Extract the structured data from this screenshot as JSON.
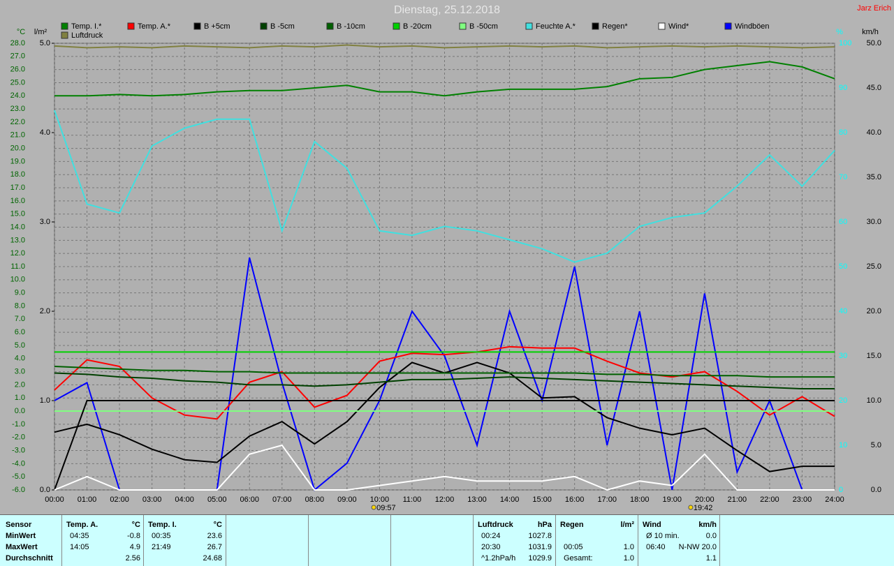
{
  "chart_data": {
    "type": "line",
    "title": "Dienstag, 25.12.2018",
    "author": "Jarz Erich",
    "ylabel": "°C",
    "y2label": "l/m²",
    "y3label": "%",
    "y4label": "km/h",
    "x": [
      0,
      1,
      2,
      3,
      4,
      5,
      6,
      7,
      8,
      9,
      10,
      11,
      12,
      13,
      14,
      15,
      16,
      17,
      18,
      19,
      20,
      21,
      22,
      23,
      24
    ],
    "xlim": [
      0,
      24
    ],
    "xticks": [
      {
        "value": 0,
        "label": "00:00"
      },
      {
        "value": 1,
        "label": "01:00"
      },
      {
        "value": 2,
        "label": "02:00"
      },
      {
        "value": 3,
        "label": "03:00"
      },
      {
        "value": 4,
        "label": "04:00"
      },
      {
        "value": 5,
        "label": "05:00"
      },
      {
        "value": 6,
        "label": "06:00"
      },
      {
        "value": 7,
        "label": "07:00"
      },
      {
        "value": 8,
        "label": "08:00"
      },
      {
        "value": 9,
        "label": "09:00"
      },
      {
        "value": 10,
        "label": "10:00"
      },
      {
        "value": 11,
        "label": "11:00"
      },
      {
        "value": 12,
        "label": "12:00"
      },
      {
        "value": 13,
        "label": "13:00"
      },
      {
        "value": 14,
        "label": "14:00"
      },
      {
        "value": 15,
        "label": "15:00"
      },
      {
        "value": 16,
        "label": "16:00"
      },
      {
        "value": 17,
        "label": "17:00"
      },
      {
        "value": 18,
        "label": "18:00"
      },
      {
        "value": 19,
        "label": "19:00"
      },
      {
        "value": 20,
        "label": "20:00"
      },
      {
        "value": 21,
        "label": "21:00"
      },
      {
        "value": 22,
        "label": "22:00"
      },
      {
        "value": 23,
        "label": "23:00"
      },
      {
        "value": 24,
        "label": "24:00"
      }
    ],
    "ylim": [
      -6,
      28
    ],
    "yticks": [
      {
        "value": 28,
        "label": "28.0"
      },
      {
        "value": 27,
        "label": "27.0"
      },
      {
        "value": 26,
        "label": "26.0"
      },
      {
        "value": 25,
        "label": "25.0"
      },
      {
        "value": 24,
        "label": "24.0"
      },
      {
        "value": 23,
        "label": "23.0"
      },
      {
        "value": 22,
        "label": "22.0"
      },
      {
        "value": 21,
        "label": "21.0"
      },
      {
        "value": 20,
        "label": "20.0"
      },
      {
        "value": 19,
        "label": "19.0"
      },
      {
        "value": 18,
        "label": "18.0"
      },
      {
        "value": 17,
        "label": "17.0"
      },
      {
        "value": 16,
        "label": "16.0"
      },
      {
        "value": 15,
        "label": "15.0"
      },
      {
        "value": 14,
        "label": "14.0"
      },
      {
        "value": 13,
        "label": "13.0"
      },
      {
        "value": 12,
        "label": "12.0"
      },
      {
        "value": 11,
        "label": "11.0"
      },
      {
        "value": 10,
        "label": "10.0"
      },
      {
        "value": 9,
        "label": "9.0"
      },
      {
        "value": 8,
        "label": "8.0"
      },
      {
        "value": 7,
        "label": "7.0"
      },
      {
        "value": 6,
        "label": "6.0"
      },
      {
        "value": 5,
        "label": "5.0"
      },
      {
        "value": 4,
        "label": "4.0"
      },
      {
        "value": 3,
        "label": "3.0"
      },
      {
        "value": 2,
        "label": "2.0"
      },
      {
        "value": 1,
        "label": "1.0"
      },
      {
        "value": 0,
        "label": "0.0"
      },
      {
        "value": -1,
        "label": "-1.0"
      },
      {
        "value": -2,
        "label": "-2.0"
      },
      {
        "value": -3,
        "label": "-3.0"
      },
      {
        "value": -4,
        "label": "-4.0"
      },
      {
        "value": -5,
        "label": "-5.0"
      },
      {
        "value": -6,
        "label": "-6.0"
      }
    ],
    "y2lim": [
      0,
      5
    ],
    "y2ticks": [
      {
        "value": 0,
        "label": "0.0"
      },
      {
        "value": 1,
        "label": "1.0"
      },
      {
        "value": 2,
        "label": "2.0"
      },
      {
        "value": 3,
        "label": "3.0"
      },
      {
        "value": 4,
        "label": "4.0"
      },
      {
        "value": 5,
        "label": "5.0"
      }
    ],
    "y3lim": [
      0,
      100
    ],
    "y3ticks": [
      0,
      10,
      20,
      30,
      40,
      50,
      60,
      70,
      80,
      90,
      100
    ],
    "y4lim": [
      0,
      50
    ],
    "y4ticks": [
      {
        "value": 0,
        "label": "0.0"
      },
      {
        "value": 5,
        "label": "5.0"
      },
      {
        "value": 10,
        "label": "10.0"
      },
      {
        "value": 15,
        "label": "15.0"
      },
      {
        "value": 20,
        "label": "20.0"
      },
      {
        "value": 25,
        "label": "25.0"
      },
      {
        "value": 30,
        "label": "30.0"
      },
      {
        "value": 35,
        "label": "35.0"
      },
      {
        "value": 40,
        "label": "40.0"
      },
      {
        "value": 45,
        "label": "45.0"
      },
      {
        "value": 50,
        "label": "50.0"
      }
    ],
    "grid": true,
    "series": [
      {
        "name": "Windböen",
        "color": "#0000ff",
        "axis": "y4",
        "values": [
          10,
          12,
          0,
          0,
          0,
          0,
          26,
          12,
          0,
          3,
          10,
          20,
          15,
          5,
          20,
          10,
          25,
          5,
          20,
          0,
          22,
          2,
          10,
          0,
          0
        ]
      },
      {
        "name": "Temp. I.*",
        "color": "#008000",
        "values": [
          24.0,
          24.0,
          24.1,
          24.0,
          24.1,
          24.3,
          24.4,
          24.4,
          24.6,
          24.8,
          24.3,
          24.3,
          24.0,
          24.3,
          24.5,
          24.5,
          24.5,
          24.7,
          25.3,
          25.4,
          26.0,
          26.3,
          26.6,
          26.2,
          25.3
        ]
      },
      {
        "name": "Temp. A.*",
        "color": "#ff0000",
        "values": [
          1.6,
          3.9,
          3.4,
          1.0,
          -0.3,
          -0.6,
          2.2,
          3.0,
          0.3,
          1.2,
          3.8,
          4.4,
          4.3,
          4.5,
          4.9,
          4.8,
          4.8,
          3.8,
          2.9,
          2.6,
          3.0,
          1.5,
          -0.3,
          1.1,
          -0.4
        ]
      },
      {
        "name": "B +5cm",
        "color": "#000000",
        "values": [
          -1.6,
          -1.0,
          -1.8,
          -2.9,
          -3.7,
          -3.9,
          -1.9,
          -0.8,
          -2.5,
          -0.8,
          1.8,
          3.7,
          2.9,
          3.7,
          2.9,
          1.0,
          1.1,
          -0.5,
          -1.3,
          -1.8,
          -1.3,
          -3.0,
          -4.6,
          -4.2,
          -4.2
        ]
      },
      {
        "name": "B -5cm",
        "color": "#004000",
        "values": [
          2.9,
          2.8,
          2.6,
          2.5,
          2.3,
          2.2,
          2.0,
          2.0,
          1.9,
          2.0,
          2.2,
          2.4,
          2.4,
          2.5,
          2.6,
          2.5,
          2.4,
          2.3,
          2.2,
          2.1,
          2.0,
          1.9,
          1.8,
          1.7,
          1.7
        ]
      },
      {
        "name": "B -10cm",
        "color": "#006000",
        "values": [
          3.4,
          3.3,
          3.2,
          3.1,
          3.1,
          3.0,
          3.0,
          2.9,
          2.9,
          2.9,
          2.9,
          2.9,
          2.9,
          2.9,
          2.9,
          2.9,
          2.9,
          2.8,
          2.8,
          2.7,
          2.7,
          2.7,
          2.6,
          2.6,
          2.6
        ]
      },
      {
        "name": "B -20cm",
        "color": "#00d000",
        "values": [
          4.5,
          4.5,
          4.5,
          4.5,
          4.5,
          4.5,
          4.5,
          4.5,
          4.5,
          4.5,
          4.5,
          4.5,
          4.5,
          4.5,
          4.5,
          4.5,
          4.5,
          4.5,
          4.5,
          4.5,
          4.5,
          4.5,
          4.5,
          4.5,
          4.5
        ]
      },
      {
        "name": "B -50cm",
        "color": "#80ff80",
        "values": [
          0,
          0,
          0,
          0,
          0,
          0,
          0,
          0,
          0,
          0,
          0,
          0,
          0,
          0,
          0,
          0,
          0,
          0,
          0,
          0,
          0,
          0,
          0,
          0,
          0
        ]
      },
      {
        "name": "Feuchte A.*",
        "color": "#40e0e0",
        "axis": "y3",
        "values": [
          85,
          64,
          62,
          77,
          81,
          83,
          83,
          58,
          78,
          72,
          58,
          57,
          59,
          58,
          56,
          54,
          51,
          53,
          59,
          61,
          62,
          68,
          75,
          68,
          76
        ]
      },
      {
        "name": "Regen*",
        "color": "#000000",
        "axis": "y2",
        "values": [
          0,
          1.0,
          1.0,
          1.0,
          1.0,
          1.0,
          1.0,
          1.0,
          1.0,
          1.0,
          1.0,
          1.0,
          1.0,
          1.0,
          1.0,
          1.0,
          1.0,
          1.0,
          1.0,
          1.0,
          1.0,
          1.0,
          1.0,
          1.0,
          1.0
        ]
      },
      {
        "name": "Wind*",
        "color": "#ffffff",
        "axis": "y4",
        "values": [
          0,
          1.5,
          0,
          0,
          0,
          0,
          4,
          5,
          0,
          0,
          0.5,
          1,
          1.5,
          1,
          1,
          1,
          1.5,
          0,
          1,
          0.5,
          4,
          0,
          0,
          0,
          0
        ]
      },
      {
        "name": "Luftdruck",
        "color": "#808040",
        "axis": "y2",
        "values": [
          4.97,
          4.95,
          4.96,
          4.95,
          4.97,
          4.96,
          4.95,
          4.97,
          4.96,
          4.98,
          4.96,
          4.97,
          4.95,
          4.96,
          4.97,
          4.96,
          4.97,
          4.95,
          4.96,
          4.97,
          4.96,
          4.97,
          4.96,
          4.95,
          4.96
        ]
      }
    ],
    "annotations": [
      {
        "x": 9.95,
        "label": "09:57"
      },
      {
        "x": 19.7,
        "label": "19:42"
      }
    ]
  },
  "stats": {
    "labels": [
      "Sensor",
      "MinWert",
      "MaxWert",
      "Durchschnitt"
    ],
    "panels": [
      {
        "title": "Temp. A.",
        "unit": "°C",
        "min": [
          "04:35",
          "-0.8"
        ],
        "max": [
          "14:05",
          "4.9"
        ],
        "avg": [
          "2.56"
        ]
      },
      {
        "title": "Temp. I.",
        "unit": "°C",
        "min": [
          "00:35",
          "23.6"
        ],
        "max": [
          "21:49",
          "26.7"
        ],
        "avg": [
          "24.68"
        ]
      },
      {
        "title": "Luftdruck",
        "unit": "hPa",
        "min": [
          "00:24",
          "1027.8"
        ],
        "max": [
          "20:30",
          "1031.9"
        ],
        "avg": [
          "^1.2hPa/h",
          "1029.9"
        ]
      },
      {
        "title": "Regen",
        "unit": "l/m²",
        "max": [
          "00:05",
          "1.0"
        ],
        "avg": [
          "Gesamt:",
          "1.0"
        ]
      },
      {
        "title": "Wind",
        "unit": "km/h",
        "min": [
          "Ø 10 min.",
          "0.0"
        ],
        "max": [
          "06:40",
          "N-NW 20.0"
        ],
        "avg": [
          "1.1"
        ]
      }
    ]
  }
}
